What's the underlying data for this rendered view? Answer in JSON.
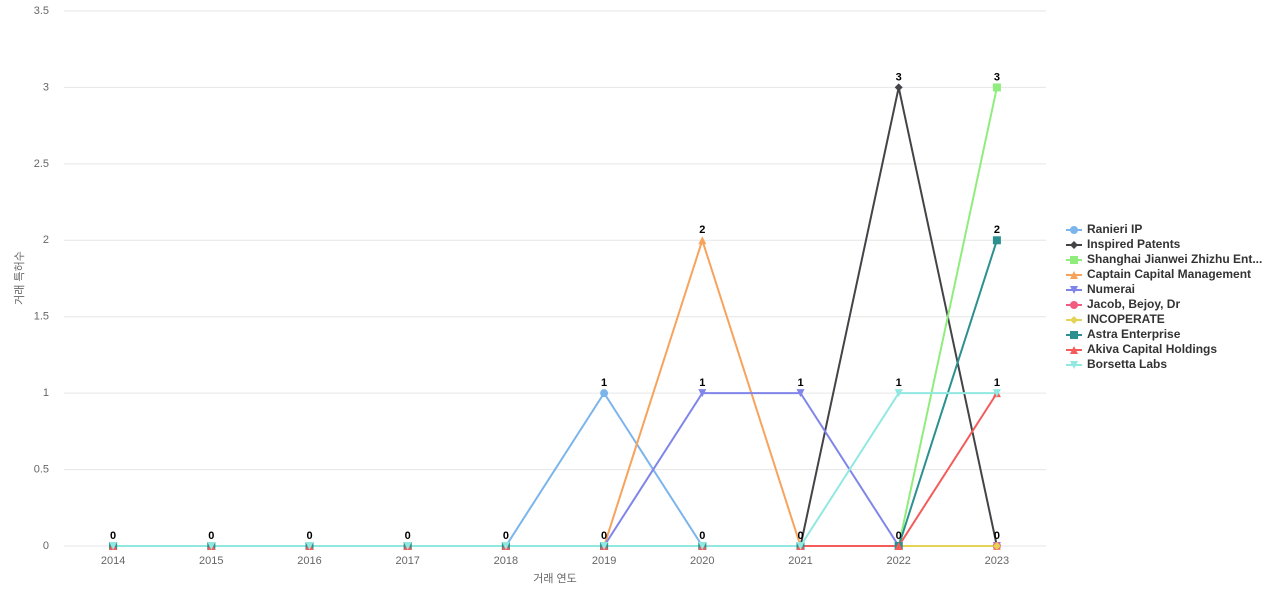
{
  "chart_data": {
    "type": "line",
    "x_label": "거래 연도",
    "y_label": "거래 특허수",
    "categories": [
      "2014",
      "2015",
      "2016",
      "2017",
      "2018",
      "2019",
      "2020",
      "2021",
      "2022",
      "2023"
    ],
    "ylim": [
      0,
      3.5
    ],
    "yticks": [
      0,
      0.5,
      1,
      1.5,
      2,
      2.5,
      3,
      3.5
    ],
    "grid": true,
    "legend": "right",
    "series": [
      {
        "name": "Ranieri IP",
        "color": "#7cb5ec",
        "marker": "circle",
        "values": [
          0,
          0,
          0,
          0,
          0,
          1,
          0,
          0,
          0,
          0
        ]
      },
      {
        "name": "Inspired Patents",
        "color": "#434348",
        "marker": "diamond",
        "values": [
          0,
          0,
          0,
          0,
          0,
          0,
          0,
          0,
          3,
          0
        ]
      },
      {
        "name": "Shanghai Jianwei Zhizhu Ent...",
        "color": "#90ed7d",
        "marker": "square",
        "values": [
          0,
          0,
          0,
          0,
          0,
          0,
          0,
          0,
          0,
          3
        ]
      },
      {
        "name": "Captain Capital Management",
        "color": "#f7a35c",
        "marker": "triangle",
        "values": [
          0,
          0,
          0,
          0,
          0,
          0,
          2,
          0,
          0,
          0
        ]
      },
      {
        "name": "Numerai",
        "color": "#8085e9",
        "marker": "triangle-down",
        "values": [
          0,
          0,
          0,
          0,
          0,
          0,
          1,
          1,
          0,
          0
        ]
      },
      {
        "name": "Jacob, Bejoy, Dr",
        "color": "#f15c80",
        "marker": "circle",
        "values": [
          0,
          0,
          0,
          0,
          0,
          0,
          0,
          0,
          0,
          0
        ]
      },
      {
        "name": "INCOPERATE",
        "color": "#e4d354",
        "marker": "diamond",
        "values": [
          0,
          0,
          0,
          0,
          0,
          0,
          0,
          0,
          0,
          0
        ]
      },
      {
        "name": "Astra Enterprise",
        "color": "#2b908f",
        "marker": "square",
        "values": [
          0,
          0,
          0,
          0,
          0,
          0,
          0,
          0,
          0,
          2
        ]
      },
      {
        "name": "Akiva Capital Holdings",
        "color": "#f45b5b",
        "marker": "triangle",
        "values": [
          0,
          0,
          0,
          0,
          0,
          0,
          0,
          0,
          0,
          1
        ]
      },
      {
        "name": "Borsetta Labs",
        "color": "#91e8e1",
        "marker": "triangle-down",
        "values": [
          0,
          0,
          0,
          0,
          0,
          0,
          0,
          0,
          1,
          1
        ]
      }
    ]
  }
}
